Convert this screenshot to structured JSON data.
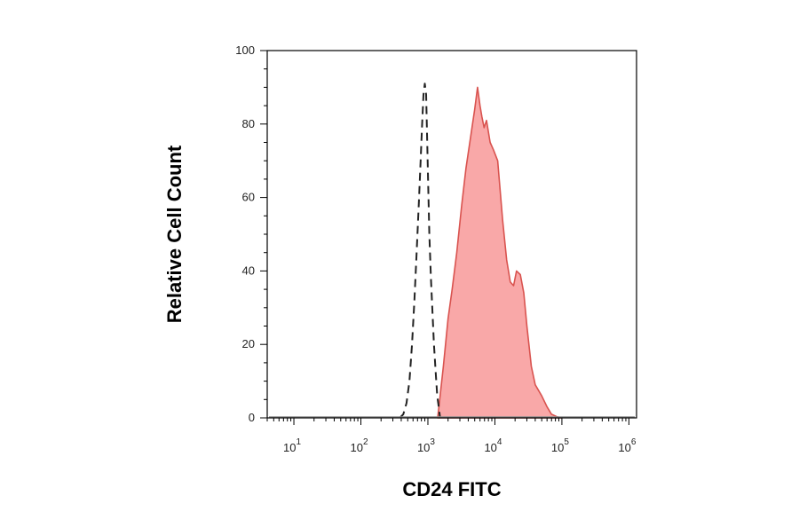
{
  "chart_data": {
    "type": "area",
    "xlabel": "CD24 FITC",
    "ylabel": "Relative Cell Count",
    "x_scale": "log",
    "xlim": [
      4,
      1300000
    ],
    "ylim": [
      0,
      100
    ],
    "x_ticks": [
      {
        "base": "10",
        "exp": "1",
        "value": 10
      },
      {
        "base": "10",
        "exp": "2",
        "value": 100
      },
      {
        "base": "10",
        "exp": "3",
        "value": 1000
      },
      {
        "base": "10",
        "exp": "4",
        "value": 10000
      },
      {
        "base": "10",
        "exp": "5",
        "value": 100000
      },
      {
        "base": "10",
        "exp": "6",
        "value": 1000000
      }
    ],
    "y_ticks": [
      {
        "label": "0",
        "value": 0
      },
      {
        "label": "20",
        "value": 20
      },
      {
        "label": "40",
        "value": 40
      },
      {
        "label": "60",
        "value": 60
      },
      {
        "label": "80",
        "value": 80
      },
      {
        "label": "100",
        "value": 100
      }
    ],
    "series": [
      {
        "style": "filled",
        "color": "#d9534f",
        "fill": "#f9a8a8",
        "x": [
          1400,
          1500,
          1700,
          2000,
          2300,
          2700,
          3200,
          3700,
          4300,
          5000,
          5500,
          6000,
          6400,
          6900,
          7500,
          8500,
          9500,
          11000,
          13000,
          15000,
          17000,
          19000,
          21000,
          24000,
          27000,
          30000,
          35000,
          40000,
          50000,
          60000,
          70000,
          85000,
          100000
        ],
        "y": [
          0,
          5,
          14,
          27,
          35,
          45,
          58,
          68,
          76,
          84,
          90,
          85,
          82,
          79,
          81,
          75,
          73,
          70,
          54,
          43,
          37,
          36,
          40,
          39,
          34,
          25,
          14,
          9,
          6,
          3,
          1,
          0.3,
          0
        ]
      },
      {
        "style": "dashed",
        "color": "#222222",
        "x": [
          380,
          430,
          480,
          530,
          580,
          630,
          680,
          730,
          780,
          820,
          860,
          900,
          940,
          990,
          1050,
          1110,
          1170,
          1230,
          1300,
          1380,
          1450,
          1520
        ],
        "y": [
          0,
          1,
          4,
          10,
          20,
          32,
          45,
          58,
          70,
          80,
          88,
          91,
          88,
          70,
          50,
          38,
          29,
          20,
          13,
          6,
          3,
          0
        ]
      }
    ]
  }
}
